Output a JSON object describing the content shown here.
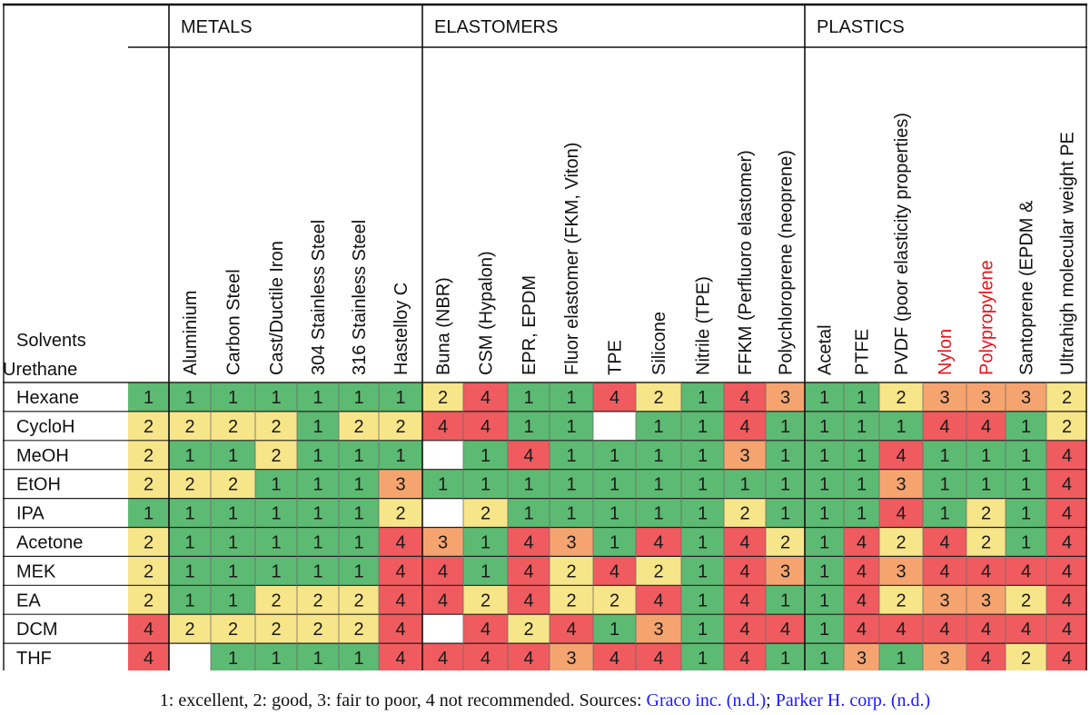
{
  "groups": [
    {
      "label": "METALS",
      "start": 0,
      "count": 6
    },
    {
      "label": "ELASTOMERS",
      "start": 6,
      "count": 9
    },
    {
      "label": "PLASTICS",
      "start": 15,
      "count": 8
    }
  ],
  "row_header_label": "Solvents",
  "columns": [
    {
      "label": "Aluminium"
    },
    {
      "label": "Carbon Steel"
    },
    {
      "label": "Cast/Ductile Iron"
    },
    {
      "label": "304 Stainless Steel"
    },
    {
      "label": "316 Stainless Steel"
    },
    {
      "label": "Hastelloy C"
    },
    {
      "label": "Buna (NBR)"
    },
    {
      "label": "CSM (Hypalon)"
    },
    {
      "label": "EPR, EPDM"
    },
    {
      "label": "Fluor elastomer (FKM, Viton)"
    },
    {
      "label": "TPE"
    },
    {
      "label": "Silicone"
    },
    {
      "label": "Nitrile (TPE)"
    },
    {
      "label": "FFKM (Perfluoro elastomer)"
    },
    {
      "label": "Polychloroprene (neoprene)"
    },
    {
      "label": "Acetal"
    },
    {
      "label": "PTFE"
    },
    {
      "label": "PVDF (poor elasticity properties)"
    },
    {
      "label": "Nylon",
      "highlight": true
    },
    {
      "label": "Polypropylene",
      "highlight": true
    },
    {
      "label": "Santoprene (EPDM &"
    },
    {
      "label": "Ultrahigh molecular weight PE"
    },
    {
      "label": "Urethane"
    }
  ],
  "rows": [
    {
      "name": "Hexane",
      "values": [
        1,
        1,
        1,
        1,
        1,
        1,
        1,
        2,
        4,
        1,
        1,
        4,
        2,
        1,
        4,
        3,
        1,
        1,
        2,
        3,
        3,
        3,
        2
      ]
    },
    {
      "name": "CycloH",
      "values": [
        2,
        2,
        2,
        2,
        1,
        2,
        2,
        4,
        4,
        1,
        1,
        null,
        1,
        1,
        4,
        1,
        1,
        1,
        1,
        4,
        4,
        1,
        2
      ]
    },
    {
      "name": "MeOH",
      "values": [
        2,
        1,
        1,
        2,
        1,
        1,
        1,
        null,
        1,
        4,
        1,
        1,
        1,
        1,
        3,
        1,
        1,
        1,
        4,
        1,
        1,
        1,
        4
      ]
    },
    {
      "name": "EtOH",
      "values": [
        2,
        2,
        2,
        1,
        1,
        1,
        3,
        1,
        1,
        1,
        1,
        1,
        1,
        1,
        1,
        1,
        1,
        1,
        3,
        1,
        1,
        1,
        4
      ]
    },
    {
      "name": "IPA",
      "values": [
        1,
        1,
        1,
        1,
        1,
        1,
        2,
        null,
        2,
        1,
        1,
        1,
        1,
        1,
        2,
        1,
        1,
        1,
        4,
        1,
        2,
        1,
        4
      ]
    },
    {
      "name": "Acetone",
      "values": [
        2,
        1,
        1,
        1,
        1,
        1,
        4,
        3,
        1,
        4,
        3,
        1,
        4,
        1,
        4,
        2,
        1,
        4,
        2,
        4,
        2,
        1,
        4
      ]
    },
    {
      "name": "MEK",
      "values": [
        2,
        1,
        1,
        1,
        1,
        1,
        4,
        4,
        1,
        4,
        2,
        4,
        2,
        1,
        4,
        3,
        1,
        4,
        3,
        4,
        4,
        4,
        4
      ]
    },
    {
      "name": "EA",
      "values": [
        2,
        1,
        1,
        2,
        2,
        2,
        4,
        4,
        2,
        4,
        2,
        2,
        4,
        1,
        4,
        1,
        1,
        4,
        2,
        3,
        3,
        2,
        4
      ]
    },
    {
      "name": "DCM",
      "values": [
        4,
        2,
        2,
        2,
        2,
        2,
        4,
        null,
        4,
        2,
        4,
        1,
        3,
        1,
        4,
        4,
        1,
        4,
        4,
        4,
        4,
        4,
        4
      ]
    },
    {
      "name": "THF",
      "values": [
        4,
        null,
        1,
        1,
        1,
        1,
        4,
        4,
        4,
        4,
        3,
        4,
        4,
        1,
        4,
        1,
        1,
        3,
        1,
        3,
        4,
        2,
        4
      ]
    }
  ],
  "rating_colors": {
    "1": "#5dba72",
    "2": "#f7e589",
    "3": "#f5a470",
    "4": "#ef5b5f",
    "empty": "#ffffff"
  },
  "highlight_color": "#e8141c",
  "caption": {
    "text": "1: excellent, 2: good, 3: fair to poor, 4 not recommended. Sources: ",
    "source1": "Graco inc. (n.d.)",
    "separator": "; ",
    "source2": "Parker H. corp. (n.d.)"
  }
}
